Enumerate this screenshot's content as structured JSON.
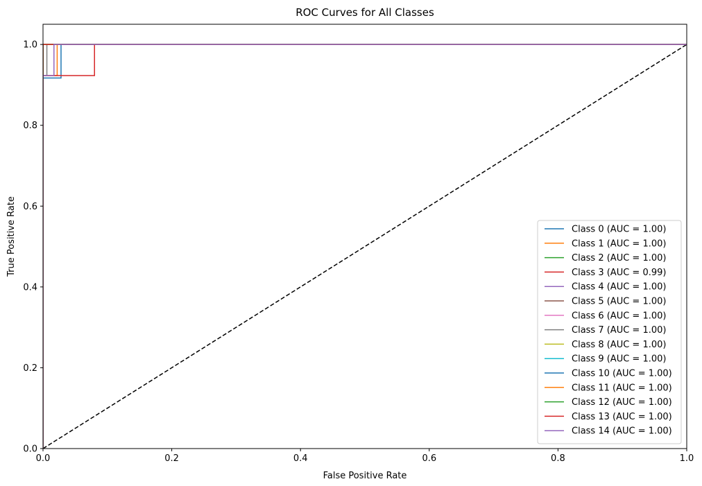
{
  "chart_data": {
    "type": "line",
    "title": "ROC Curves for All Classes",
    "xlabel": "False Positive Rate",
    "ylabel": "True Positive Rate",
    "xlim": [
      0,
      1
    ],
    "ylim": [
      0,
      1.05
    ],
    "xticks": [
      "0.0",
      "0.2",
      "0.4",
      "0.6",
      "0.8",
      "1.0"
    ],
    "yticks": [
      "0.0",
      "0.2",
      "0.4",
      "0.6",
      "0.8",
      "1.0"
    ],
    "grid": false,
    "legend_position": "lower-right",
    "series": [
      {
        "name": "Class 0 (AUC = 1.00)",
        "color": "#1f77b4",
        "x": [
          0,
          0,
          0.028,
          0.028,
          1
        ],
        "y": [
          0,
          0.917,
          0.917,
          1,
          1
        ]
      },
      {
        "name": "Class 1 (AUC = 1.00)",
        "color": "#ff7f0e",
        "x": [
          0,
          0,
          0.022,
          0.022,
          1
        ],
        "y": [
          0,
          0.923,
          0.923,
          1,
          1
        ]
      },
      {
        "name": "Class 2 (AUC = 1.00)",
        "color": "#2ca02c",
        "x": [
          0,
          0,
          1
        ],
        "y": [
          0,
          1,
          1
        ]
      },
      {
        "name": "Class 3 (AUC = 0.99)",
        "color": "#d62728",
        "x": [
          0,
          0,
          0.08,
          0.08,
          1
        ],
        "y": [
          0,
          0.923,
          0.923,
          1,
          1
        ]
      },
      {
        "name": "Class 4 (AUC = 1.00)",
        "color": "#9467bd",
        "x": [
          0,
          0,
          1
        ],
        "y": [
          0,
          1,
          1
        ]
      },
      {
        "name": "Class 5 (AUC = 1.00)",
        "color": "#8c564b",
        "x": [
          0,
          0,
          1
        ],
        "y": [
          0,
          1,
          1
        ]
      },
      {
        "name": "Class 6 (AUC = 1.00)",
        "color": "#e377c2",
        "x": [
          0,
          0,
          1
        ],
        "y": [
          0,
          1,
          1
        ]
      },
      {
        "name": "Class 7 (AUC = 1.00)",
        "color": "#7f7f7f",
        "x": [
          0,
          0,
          0.006,
          0.006,
          1
        ],
        "y": [
          0,
          0.923,
          0.923,
          1,
          1
        ]
      },
      {
        "name": "Class 8 (AUC = 1.00)",
        "color": "#bcbd22",
        "x": [
          0,
          0,
          1
        ],
        "y": [
          0,
          1,
          1
        ]
      },
      {
        "name": "Class 9 (AUC = 1.00)",
        "color": "#17becf",
        "x": [
          0,
          0,
          1
        ],
        "y": [
          0,
          1,
          1
        ]
      },
      {
        "name": "Class 10 (AUC = 1.00)",
        "color": "#1f77b4",
        "x": [
          0,
          0,
          1
        ],
        "y": [
          0,
          1,
          1
        ]
      },
      {
        "name": "Class 11 (AUC = 1.00)",
        "color": "#ff7f0e",
        "x": [
          0,
          0,
          1
        ],
        "y": [
          0,
          1,
          1
        ]
      },
      {
        "name": "Class 12 (AUC = 1.00)",
        "color": "#2ca02c",
        "x": [
          0,
          0,
          1
        ],
        "y": [
          0,
          1,
          1
        ]
      },
      {
        "name": "Class 13 (AUC = 1.00)",
        "color": "#d62728",
        "x": [
          0,
          0,
          1
        ],
        "y": [
          0,
          1,
          1
        ]
      },
      {
        "name": "Class 14 (AUC = 1.00)",
        "color": "#9467bd",
        "x": [
          0,
          0,
          0.017,
          0.017,
          1
        ],
        "y": [
          0,
          0.923,
          0.923,
          1,
          1
        ]
      }
    ],
    "reference_line": {
      "x": [
        0,
        1
      ],
      "y": [
        0,
        1
      ],
      "color": "#000000",
      "style": "dashed"
    }
  }
}
